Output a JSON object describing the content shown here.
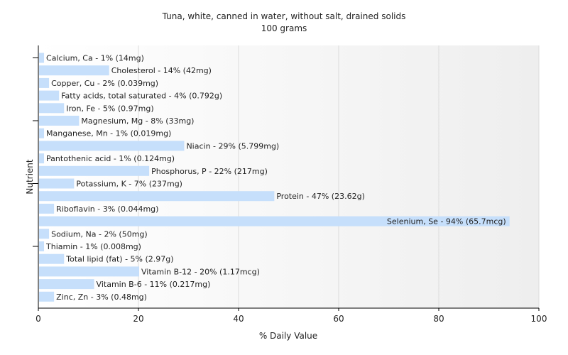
{
  "chart_data": {
    "type": "bar",
    "orientation": "horizontal",
    "title": "Tuna, white, canned in water, without salt, drained solids",
    "subtitle": "100 grams",
    "xlabel": "% Daily Value",
    "ylabel": "Nutrient",
    "xlim": [
      0,
      100
    ],
    "xticks": [
      "0",
      "20",
      "40",
      "60",
      "80",
      "100"
    ],
    "grid": true,
    "bar_color": "#c6dffb",
    "categories": [
      "Calcium, Ca",
      "Cholesterol",
      "Copper, Cu",
      "Fatty acids, total saturated",
      "Iron, Fe",
      "Magnesium, Mg",
      "Manganese, Mn",
      "Niacin",
      "Pantothenic acid",
      "Phosphorus, P",
      "Potassium, K",
      "Protein",
      "Riboflavin",
      "Selenium, Se",
      "Sodium, Na",
      "Thiamin",
      "Total lipid (fat)",
      "Vitamin B-12",
      "Vitamin B-6",
      "Zinc, Zn"
    ],
    "values": [
      1,
      14,
      2,
      4,
      5,
      8,
      1,
      29,
      1,
      22,
      7,
      47,
      3,
      94,
      2,
      1,
      5,
      20,
      11,
      3
    ],
    "labels": [
      "Calcium, Ca - 1% (14mg)",
      "Cholesterol - 14% (42mg)",
      "Copper, Cu - 2% (0.039mg)",
      "Fatty acids, total saturated - 4% (0.792g)",
      "Iron, Fe - 5% (0.97mg)",
      "Magnesium, Mg - 8% (33mg)",
      "Manganese, Mn - 1% (0.019mg)",
      "Niacin - 29% (5.799mg)",
      "Pantothenic acid - 1% (0.124mg)",
      "Phosphorus, P - 22% (217mg)",
      "Potassium, K - 7% (237mg)",
      "Protein - 47% (23.62g)",
      "Riboflavin - 3% (0.044mg)",
      "Selenium, Se - 94% (65.7mcg)",
      "Sodium, Na - 2% (50mg)",
      "Thiamin - 1% (0.008mg)",
      "Total lipid (fat) - 5% (2.97g)",
      "Vitamin B-12 - 20% (1.17mcg)",
      "Vitamin B-6 - 11% (0.217mg)",
      "Zinc, Zn - 3% (0.48mg)"
    ]
  }
}
